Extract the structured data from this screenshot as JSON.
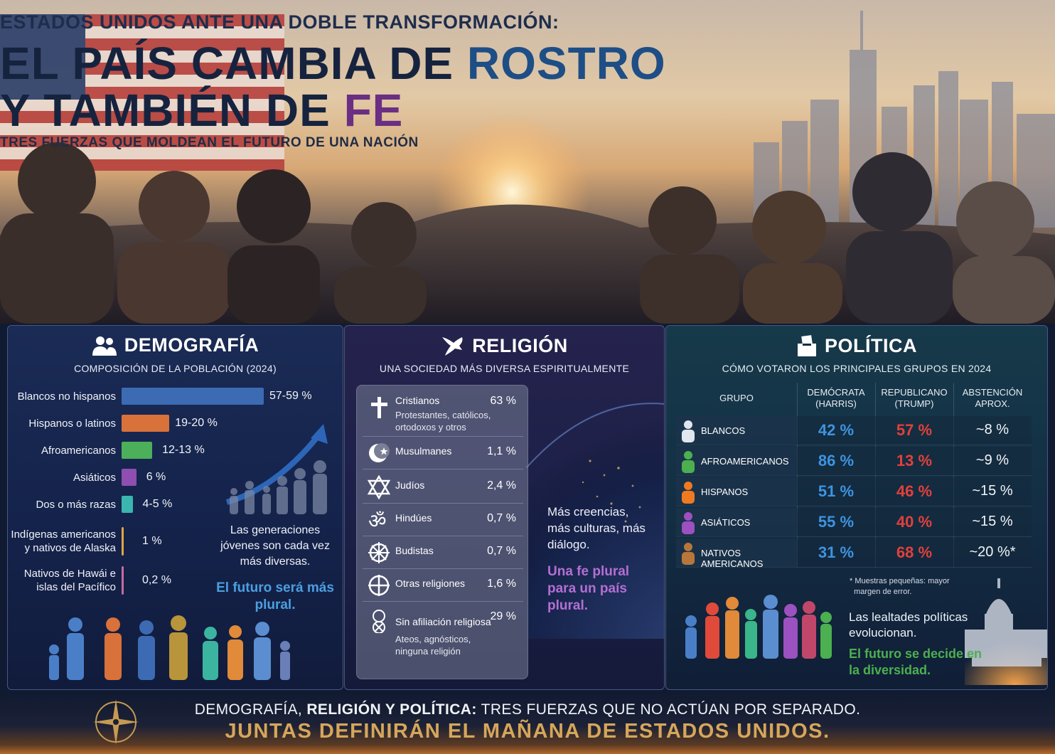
{
  "hero": {
    "kicker": "ESTADOS UNIDOS ANTE UNA DOBLE TRANSFORMACIÓN:",
    "title_line1_a": "EL PAÍS CAMBIA DE ",
    "title_line1_b": "ROSTRO",
    "title_line2_a": "Y TAMBIÉN DE ",
    "title_line2_b": "FE",
    "subtitle": "TRES FUERZAS QUE MOLDEAN EL FUTURO DE UNA NACIÓN"
  },
  "demografia": {
    "title": "DEMOGRAFÍA",
    "icon": "people-icon",
    "subtitle": "COMPOSICIÓN DE LA POBLACIÓN (2024)",
    "rows": [
      {
        "label": "Blancos no hispanos",
        "value": "57-59 %",
        "pct": 58,
        "color": "#3d6bb3"
      },
      {
        "label": "Hispanos o latinos",
        "value": "19-20 %",
        "pct": 19.5,
        "color": "#d9713a"
      },
      {
        "label": "Afroamericanos",
        "value": "12-13 %",
        "pct": 12.5,
        "color": "#4caf5a"
      },
      {
        "label": "Asiáticos",
        "value": "6 %",
        "pct": 6,
        "color": "#8e4fb0"
      },
      {
        "label": "Dos o más razas",
        "value": "4-5 %",
        "pct": 4.5,
        "color": "#3bb5b0"
      },
      {
        "label": "Indígenas americanos\ny nativos de Alaska",
        "value": "1 %",
        "pct": 1,
        "color": "#e0a640"
      },
      {
        "label": "Nativos de Hawái e\nislas del Pacífico",
        "value": "0,2 %",
        "pct": 0.2,
        "color": "#c76aa0"
      }
    ],
    "note": "Las generaciones jóvenes son cada vez más diversas.",
    "accent": "El futuro será más plural."
  },
  "religion": {
    "title": "RELIGIÓN",
    "icon": "dove-icon",
    "subtitle": "UNA SOCIEDAD MÁS DIVERSA ESPIRITUALMENTE",
    "rows": [
      {
        "icon": "cross-icon",
        "name": "Cristianos",
        "desc": "Protestantes, católicos,\nortodoxos y otros",
        "value": "63 %"
      },
      {
        "icon": "crescent-icon",
        "name": "Musulmanes",
        "desc": "",
        "value": "1,1 %"
      },
      {
        "icon": "star-of-david-icon",
        "name": "Judíos",
        "desc": "",
        "value": "2,4 %"
      },
      {
        "icon": "om-icon",
        "name": "Hindúes",
        "desc": "",
        "value": "0,7 %"
      },
      {
        "icon": "dharma-wheel-icon",
        "name": "Budistas",
        "desc": "",
        "value": "0,7 %"
      },
      {
        "icon": "circle-cross-icon",
        "name": "Otras religiones",
        "desc": "",
        "value": "1,6 %"
      },
      {
        "icon": "no-affiliation-icon",
        "name": "Sin afiliación religiosa",
        "desc": "Ateos, agnósticos,\nninguna religión",
        "value": "29 %"
      }
    ],
    "note": "Más creencias, más culturas, más diálogo.",
    "accent": "Una fe plural para un país plural."
  },
  "politica": {
    "title": "POLÍTICA",
    "icon": "ballot-box-icon",
    "subtitle": "CÓMO VOTARON LOS PRINCIPALES GRUPOS EN 2024",
    "headers": {
      "group": "GRUPO",
      "dem": "DEMÓCRATA\n(HARRIS)",
      "rep": "REPUBLICANO\n(TRUMP)",
      "abs": "ABSTENCIÓN\nAPROX."
    },
    "rows": [
      {
        "group": "BLANCOS",
        "dem": "42 %",
        "rep": "57 %",
        "abs": "~8 %",
        "color": "#dfe6ee"
      },
      {
        "group": "AFROAMERICANOS",
        "dem": "86 %",
        "rep": "13 %",
        "abs": "~9 %",
        "color": "#4caf50"
      },
      {
        "group": "HISPANOS",
        "dem": "51 %",
        "rep": "46 %",
        "abs": "~15 %",
        "color": "#ef7a22"
      },
      {
        "group": "ASIÁTICOS",
        "dem": "55 %",
        "rep": "40 %",
        "abs": "~15 %",
        "color": "#9b51c0"
      },
      {
        "group": "NATIVOS AMERICANOS",
        "dem": "31 %",
        "rep": "68 %",
        "abs": "~20 %*",
        "color": "#b7773a"
      }
    ],
    "footnote": "* Muestras pequeñas: mayor\n  margen de error.",
    "note": "Las lealtades políticas evolucionan.",
    "accent": "El futuro se decide en la diversidad."
  },
  "footer": {
    "line1_a": "DEMOGRAFÍA, ",
    "line1_b": "RELIGIÓN Y POLÍTICA:",
    "line1_c": " TRES FUERZAS QUE NO ACTÚAN POR SEPARADO.",
    "line2": "JUNTAS DEFINIRÁN EL MAÑANA DE ESTADOS UNIDOS.",
    "icon": "compass-icon"
  },
  "colors": {
    "dem_blue": "#3d94e0",
    "rep_red": "#e2403b",
    "demo_accent": "#4b9fe0",
    "religion_accent": "#b46fd1",
    "politics_accent": "#4caf50",
    "footer_gold": "#d6a65a"
  }
}
